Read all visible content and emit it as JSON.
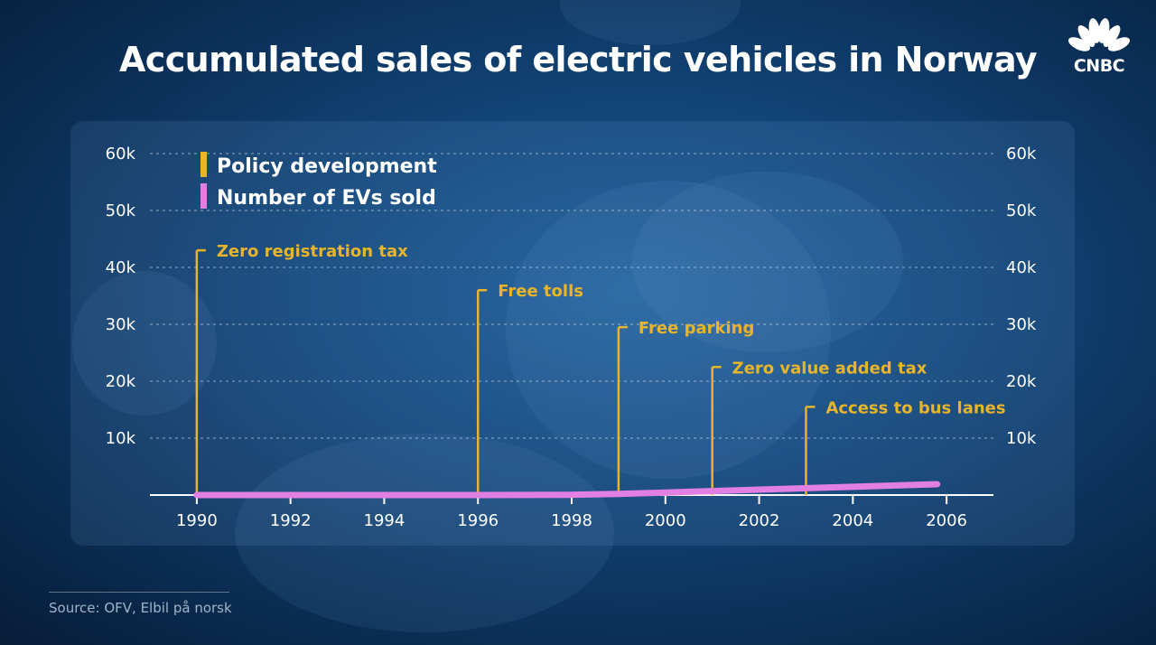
{
  "title": "Accumulated sales of electric vehicles in Norway",
  "logo": {
    "text": "CNBC",
    "icon": "peacock-icon"
  },
  "source": "Source: OFV, Elbil på norsk",
  "colors": {
    "policy": "#e8b52a",
    "evs": "#e17fe3",
    "grid": "#cfd9e6"
  },
  "chart_data": {
    "type": "line",
    "title": "Accumulated sales of electric vehicles in Norway",
    "xlabel": "",
    "ylabel": "",
    "xlim": [
      1989,
      2007
    ],
    "ylim": [
      0,
      60000
    ],
    "x_ticks": [
      1990,
      1992,
      1994,
      1996,
      1998,
      2000,
      2002,
      2004,
      2006
    ],
    "y_ticks": [
      {
        "value": 10000,
        "label": "10k"
      },
      {
        "value": 20000,
        "label": "20k"
      },
      {
        "value": 30000,
        "label": "30k"
      },
      {
        "value": 40000,
        "label": "40k"
      },
      {
        "value": 50000,
        "label": "50k"
      },
      {
        "value": 60000,
        "label": "60k"
      }
    ],
    "grid": true,
    "legend": [
      {
        "label": "Policy development",
        "color": "#e8b52a"
      },
      {
        "label": "Number of EVs sold",
        "color": "#e17fe3"
      }
    ],
    "legend_position": "top-left",
    "series": [
      {
        "name": "Number of EVs sold",
        "x": [
          1990,
          1996,
          1998,
          1999,
          2000,
          2001,
          2002,
          2003,
          2004,
          2005,
          2005.8
        ],
        "y": [
          0,
          0,
          50,
          200,
          450,
          700,
          950,
          1200,
          1450,
          1700,
          1900
        ]
      }
    ],
    "annotations": [
      {
        "x": 1990,
        "y": 43000,
        "label": "Zero registration tax"
      },
      {
        "x": 1996,
        "y": 36000,
        "label": "Free tolls"
      },
      {
        "x": 1999,
        "y": 29500,
        "label": "Free parking"
      },
      {
        "x": 2001,
        "y": 22500,
        "label": "Zero value added tax"
      },
      {
        "x": 2003,
        "y": 15500,
        "label": "Access to bus lanes"
      }
    ]
  }
}
